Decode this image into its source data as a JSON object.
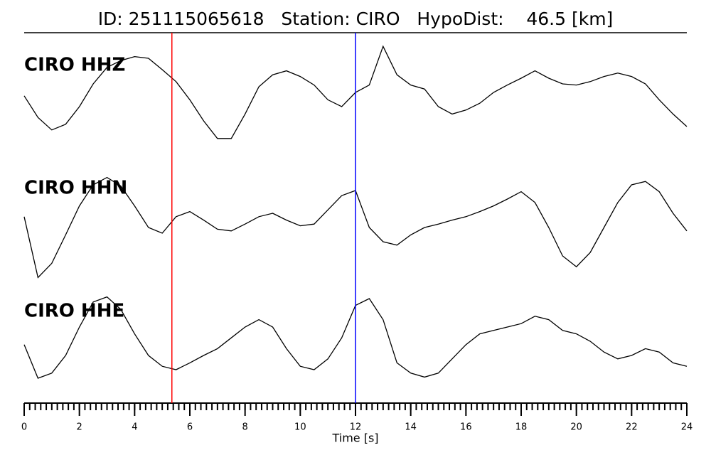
{
  "chart_data": {
    "type": "line",
    "title": "ID: 251115065618   Station: CIRO   HypoDist:    46.5 [km]",
    "xlabel": "Time [s]",
    "xlim": [
      0,
      24
    ],
    "xticks": [
      0,
      2,
      4,
      6,
      8,
      10,
      12,
      14,
      16,
      18,
      20,
      22,
      24
    ],
    "xminorticks": [
      0,
      0.2,
      0.4,
      0.6,
      0.8,
      1,
      1.2,
      1.4,
      1.6,
      1.8,
      2,
      2.2,
      2.4,
      2.6,
      2.8,
      3,
      3.2,
      3.4,
      3.6,
      3.8,
      4,
      4.2,
      4.4,
      4.6,
      4.8,
      5,
      5.2,
      5.4,
      5.6,
      5.8,
      6,
      6.2,
      6.4,
      6.6,
      6.8,
      7,
      7.2,
      7.4,
      7.6,
      7.8,
      8,
      8.2,
      8.4,
      8.6,
      8.8,
      9,
      9.2,
      9.4,
      9.6,
      9.8,
      10,
      10.2,
      10.4,
      10.6,
      10.8,
      11,
      11.2,
      11.4,
      11.6,
      11.8,
      12,
      12.2,
      12.4,
      12.6,
      12.8,
      13,
      13.2,
      13.4,
      13.6,
      13.8,
      14,
      14.2,
      14.4,
      14.6,
      14.8,
      15,
      15.2,
      15.4,
      15.6,
      15.8,
      16,
      16.2,
      16.4,
      16.6,
      16.8,
      17,
      17.2,
      17.4,
      17.6,
      17.8,
      18,
      18.2,
      18.4,
      18.6,
      18.8,
      19,
      19.2,
      19.4,
      19.6,
      19.8,
      20,
      20.2,
      20.4,
      20.6,
      20.8,
      21,
      21.2,
      21.4,
      21.6,
      21.8,
      22,
      22.2,
      22.4,
      22.6,
      22.8,
      23,
      23.2,
      23.4,
      23.6,
      23.8,
      24
    ],
    "ylim": [
      -1,
      1
    ],
    "vlines": [
      {
        "x": 5.35,
        "color": "#ff0000"
      },
      {
        "x": 12.0,
        "color": "#0000ff"
      }
    ],
    "label_color": "#4a9a0a",
    "x": [
      0,
      0.5,
      1,
      1.5,
      2,
      2.5,
      3,
      3.5,
      4,
      4.5,
      5,
      5.5,
      6,
      6.5,
      7,
      7.5,
      8,
      8.5,
      9,
      9.5,
      10,
      10.5,
      11,
      11.5,
      12,
      12.5,
      13,
      13.5,
      14,
      14.5,
      15,
      15.5,
      16,
      16.5,
      17,
      17.5,
      18,
      18.5,
      19,
      19.5,
      20,
      20.5,
      21,
      21.5,
      22,
      22.5,
      23,
      23.5,
      24
    ],
    "series": [
      {
        "name": "CIRO HHZ",
        "color": "#000000",
        "values": [
          -0.06,
          -0.44,
          -0.66,
          -0.56,
          -0.25,
          0.15,
          0.44,
          0.56,
          0.63,
          0.6,
          0.4,
          0.19,
          -0.13,
          -0.5,
          -0.81,
          -0.81,
          -0.38,
          0.1,
          0.31,
          0.38,
          0.28,
          0.13,
          -0.13,
          -0.25,
          0,
          0.13,
          0.81,
          0.31,
          0.13,
          0.06,
          -0.25,
          -0.38,
          -0.31,
          -0.19,
          0,
          0.13,
          0.25,
          0.38,
          0.25,
          0.15,
          0.13,
          0.19,
          0.28,
          0.34,
          0.28,
          0.15,
          -0.13,
          -0.38,
          -0.6
        ]
      },
      {
        "name": "CIRO HHN",
        "color": "#000000",
        "values": [
          0.19,
          -0.88,
          -0.63,
          -0.13,
          0.38,
          0.75,
          0.88,
          0.73,
          0.38,
          0,
          -0.1,
          0.19,
          0.28,
          0.13,
          -0.03,
          -0.06,
          0.06,
          0.19,
          0.25,
          0.13,
          0.03,
          0.06,
          0.31,
          0.56,
          0.65,
          0,
          -0.25,
          -0.31,
          -0.13,
          0,
          0.06,
          0.13,
          0.19,
          0.28,
          0.38,
          0.5,
          0.63,
          0.44,
          0,
          -0.5,
          -0.69,
          -0.44,
          0,
          0.44,
          0.75,
          0.81,
          0.63,
          0.25,
          -0.06
        ]
      },
      {
        "name": "CIRO HHE",
        "color": "#000000",
        "values": [
          -0.06,
          -0.65,
          -0.56,
          -0.25,
          0.25,
          0.69,
          0.78,
          0.56,
          0.13,
          -0.25,
          -0.44,
          -0.5,
          -0.38,
          -0.25,
          -0.13,
          0.06,
          0.25,
          0.38,
          0.25,
          -0.13,
          -0.44,
          -0.5,
          -0.31,
          0.06,
          0.63,
          0.75,
          0.38,
          -0.38,
          -0.56,
          -0.63,
          -0.56,
          -0.31,
          -0.06,
          0.13,
          0.19,
          0.25,
          0.31,
          0.44,
          0.38,
          0.19,
          0.13,
          0,
          -0.19,
          -0.31,
          -0.25,
          -0.13,
          -0.19,
          -0.38,
          -0.44
        ]
      }
    ]
  }
}
